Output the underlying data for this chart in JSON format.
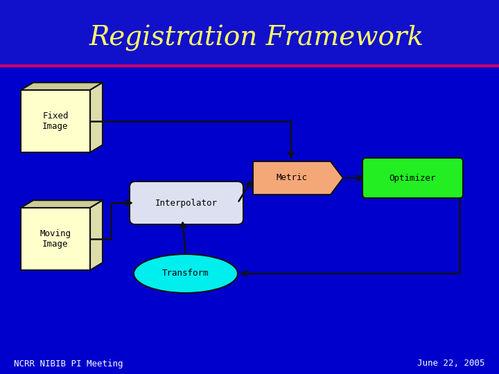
{
  "title": "Registration Framework",
  "title_color": "#FFFF66",
  "title_fontsize": 28,
  "background_color": "#0000cc",
  "header_bg": "#0000dd",
  "separator_color": "#cc0066",
  "footer_left": "NCRR NIBIB PI Meeting",
  "footer_right": "June 22, 2005",
  "footer_color": "#ffffff",
  "footer_fontsize": 9,
  "cube_color": "#ffffcc",
  "cube_edge": "#111111",
  "interp_color": "#dde0f0",
  "interp_edge": "#111111",
  "metric_color": "#f4a878",
  "metric_edge": "#111111",
  "optimizer_color": "#22ee22",
  "optimizer_edge": "#111111",
  "transform_color": "#00eeee",
  "transform_edge": "#111111",
  "arrow_color": "#111111"
}
